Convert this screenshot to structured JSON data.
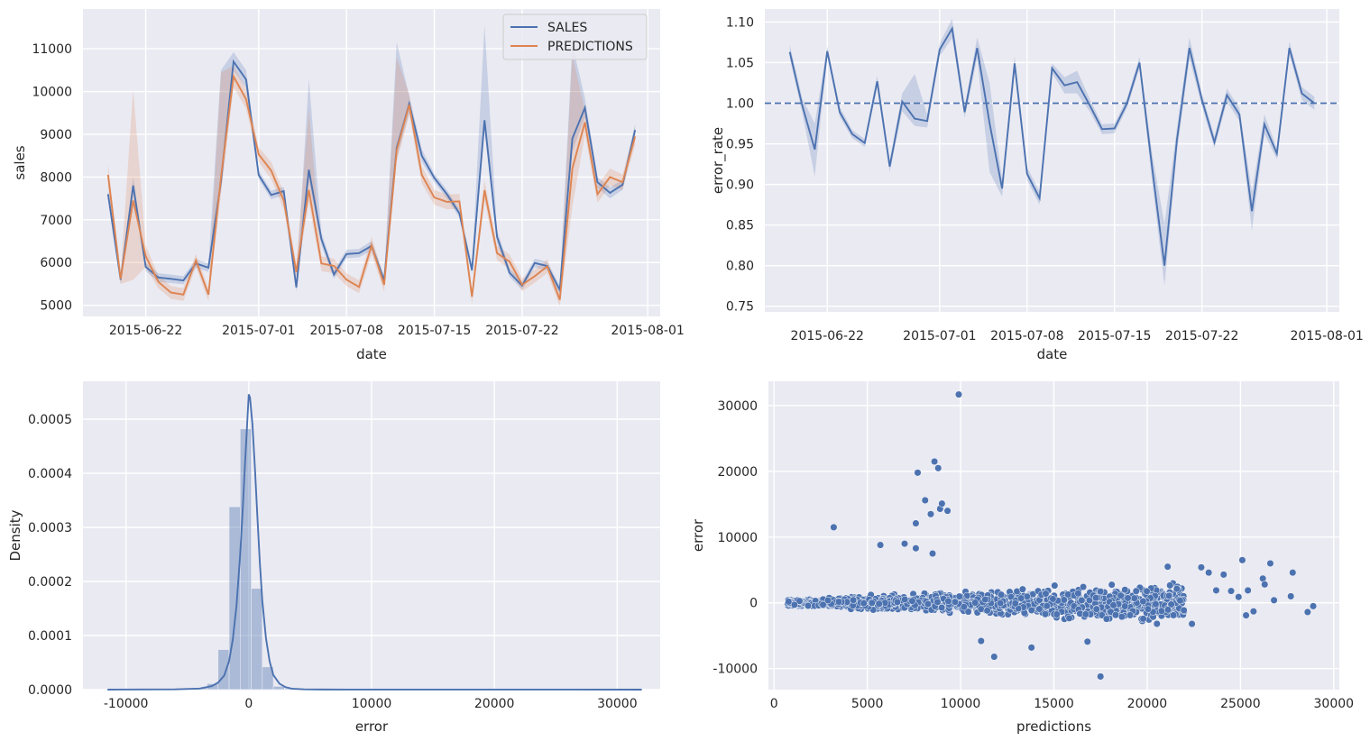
{
  "chart_data": [
    {
      "type": "line",
      "panel": "top-left",
      "xlabel": "date",
      "ylabel": "sales",
      "x": [
        "2015-06-19",
        "2015-06-20",
        "2015-06-21",
        "2015-06-22",
        "2015-06-23",
        "2015-06-24",
        "2015-06-25",
        "2015-06-26",
        "2015-06-27",
        "2015-06-28",
        "2015-06-29",
        "2015-06-30",
        "2015-07-01",
        "2015-07-02",
        "2015-07-03",
        "2015-07-04",
        "2015-07-05",
        "2015-07-06",
        "2015-07-07",
        "2015-07-08",
        "2015-07-09",
        "2015-07-10",
        "2015-07-11",
        "2015-07-12",
        "2015-07-13",
        "2015-07-14",
        "2015-07-15",
        "2015-07-16",
        "2015-07-17",
        "2015-07-18",
        "2015-07-19",
        "2015-07-20",
        "2015-07-21",
        "2015-07-22",
        "2015-07-23",
        "2015-07-24",
        "2015-07-25",
        "2015-07-26",
        "2015-07-27",
        "2015-07-28",
        "2015-07-29",
        "2015-07-30",
        "2015-07-31"
      ],
      "xticks": [
        "2015-06-22",
        "2015-07-01",
        "2015-07-08",
        "2015-07-15",
        "2015-07-22",
        "2015-08-01"
      ],
      "xlim": [
        "2015-06-17",
        "2015-08-02"
      ],
      "yticks": [
        5000,
        6000,
        7000,
        8000,
        9000,
        10000,
        11000
      ],
      "ylim": [
        4740,
        11930
      ],
      "legend_position": "top-right",
      "series": [
        {
          "name": "SALES",
          "color": "#4c72b0",
          "values": [
            7600,
            5600,
            7800,
            5900,
            5650,
            5620,
            5580,
            5980,
            5880,
            7900,
            10700,
            10280,
            8050,
            7580,
            7670,
            5420,
            8170,
            6550,
            5720,
            6200,
            6220,
            6390,
            5580,
            8680,
            9710,
            8500,
            7980,
            7600,
            7150,
            5820,
            9330,
            6600,
            5760,
            5460,
            5990,
            5920,
            5360,
            8900,
            9620,
            7880,
            7630,
            7820,
            9100
          ],
          "lower": [
            7500,
            5500,
            7600,
            5800,
            5550,
            5520,
            5490,
            5880,
            5780,
            7700,
            10500,
            10080,
            7950,
            7480,
            7570,
            5320,
            7900,
            6400,
            5620,
            6100,
            6120,
            6280,
            5480,
            8450,
            9500,
            8350,
            7880,
            7500,
            7050,
            5720,
            9100,
            6450,
            5660,
            5360,
            5890,
            5820,
            5260,
            8600,
            9400,
            7750,
            7500,
            7700,
            8950
          ],
          "upper": [
            7700,
            5700,
            8000,
            6000,
            5750,
            5720,
            5680,
            6080,
            5980,
            10500,
            10920,
            10500,
            8150,
            7680,
            7770,
            5520,
            10300,
            6700,
            5820,
            6300,
            6320,
            6500,
            5680,
            11150,
            9900,
            8650,
            8080,
            7700,
            7250,
            5920,
            11550,
            6750,
            5860,
            5560,
            6090,
            6020,
            5460,
            11100,
            9850,
            8000,
            7760,
            7940,
            9250
          ]
        },
        {
          "name": "PREDICTIONS",
          "color": "#dd8452",
          "values": [
            8050,
            5620,
            7450,
            6150,
            5550,
            5300,
            5250,
            6050,
            5250,
            8000,
            10350,
            9820,
            8530,
            8150,
            7450,
            5780,
            7700,
            5980,
            5920,
            5600,
            5430,
            6400,
            5480,
            8630,
            9690,
            8050,
            7520,
            7420,
            7430,
            5200,
            7690,
            6220,
            6020,
            5480,
            5680,
            5910,
            5130,
            8200,
            9280,
            7600,
            8000,
            7880,
            8950
          ],
          "lower": [
            7800,
            5500,
            5600,
            5900,
            5400,
            5150,
            5100,
            5900,
            5100,
            7600,
            10100,
            9600,
            8350,
            7950,
            7250,
            5600,
            7400,
            5800,
            5750,
            5450,
            5280,
            6200,
            5320,
            8350,
            9450,
            7850,
            7350,
            7250,
            7250,
            5050,
            7450,
            6050,
            5850,
            5330,
            5530,
            5750,
            4980,
            7300,
            9000,
            7400,
            7800,
            7700,
            8750
          ],
          "upper": [
            8300,
            5740,
            10050,
            6400,
            5700,
            5450,
            5400,
            6200,
            5400,
            10450,
            10600,
            10050,
            8700,
            8350,
            7650,
            5960,
            9600,
            6150,
            6090,
            5750,
            5580,
            6600,
            5640,
            10800,
            9930,
            8250,
            7700,
            7590,
            7610,
            5350,
            7930,
            6390,
            6190,
            5630,
            5830,
            6070,
            5280,
            10850,
            9560,
            7800,
            8200,
            8060,
            9150
          ]
        }
      ]
    },
    {
      "type": "line",
      "panel": "top-right",
      "xlabel": "date",
      "ylabel": "error_rate",
      "x_ref": "same dates as top-left",
      "xticks": [
        "2015-06-22",
        "2015-07-01",
        "2015-07-08",
        "2015-07-15",
        "2015-07-22",
        "2015-08-01"
      ],
      "yticks": [
        "0.75",
        "0.80",
        "0.85",
        "0.90",
        "0.95",
        "1.00",
        "1.05",
        "1.10"
      ],
      "ylim": [
        0.743,
        1.116
      ],
      "reference_line": 1.0,
      "series": [
        {
          "name": "error_rate",
          "color": "#4c72b0",
          "values": [
            1.063,
            0.997,
            0.943,
            1.064,
            0.989,
            0.962,
            0.951,
            1.027,
            0.922,
            1.002,
            0.981,
            0.978,
            1.066,
            1.092,
            0.989,
            1.068,
            0.975,
            0.895,
            1.049,
            0.913,
            0.883,
            1.043,
            1.022,
            1.026,
            0.998,
            0.968,
            0.969,
            1.0,
            1.05,
            0.922,
            0.8,
            0.955,
            1.068,
            1.004,
            0.952,
            1.01,
            0.986,
            0.867,
            0.974,
            0.938,
            1.068,
            1.012,
            1.0
          ],
          "lower": [
            1.055,
            0.988,
            0.91,
            1.058,
            0.983,
            0.957,
            0.946,
            1.02,
            0.915,
            0.99,
            0.972,
            0.97,
            1.058,
            1.08,
            0.982,
            1.055,
            0.915,
            0.885,
            1.04,
            0.905,
            0.875,
            1.037,
            1.012,
            1.012,
            0.99,
            0.962,
            0.963,
            0.994,
            1.043,
            0.905,
            0.775,
            0.94,
            1.055,
            0.996,
            0.945,
            1.002,
            0.978,
            0.843,
            0.962,
            0.931,
            1.06,
            1.004,
            0.992
          ],
          "upper": [
            1.072,
            1.006,
            0.975,
            1.07,
            0.995,
            0.967,
            0.956,
            1.034,
            0.929,
            1.012,
            1.036,
            0.986,
            1.074,
            1.104,
            0.996,
            1.081,
            1.025,
            0.905,
            1.058,
            0.921,
            0.891,
            1.049,
            1.032,
            1.04,
            1.006,
            0.974,
            0.975,
            1.006,
            1.057,
            0.939,
            0.851,
            0.97,
            1.081,
            1.012,
            0.959,
            1.018,
            0.994,
            0.891,
            0.986,
            0.945,
            1.076,
            1.02,
            1.008
          ]
        }
      ]
    },
    {
      "type": "histogram",
      "panel": "bottom-left",
      "xlabel": "error",
      "ylabel": "Density",
      "xlim": [
        -13500,
        33500
      ],
      "xticks": [
        -10000,
        0,
        10000,
        20000,
        30000
      ],
      "ylim": [
        0,
        0.00057
      ],
      "yticks": [
        "0.0000",
        "0.0001",
        "0.0002",
        "0.0003",
        "0.0004",
        "0.0005"
      ],
      "bin_edges": [
        -11500,
        -10600,
        -9700,
        -8800,
        -7900,
        -7000,
        -6100,
        -5200,
        -4300,
        -3400,
        -2500,
        -1600,
        -700,
        200,
        1100,
        2000,
        2900,
        3800,
        4700,
        5600,
        6500,
        7400,
        8300,
        9200,
        10100,
        11000,
        11900,
        12800,
        13700,
        14600,
        15500,
        16400,
        17300,
        18200,
        19100,
        20000,
        20900,
        21800,
        22700,
        23600,
        24500,
        25400,
        26300,
        27200,
        28100,
        29000,
        29900,
        30800,
        31700
      ],
      "bar_density": [
        1e-07,
        0,
        0,
        0,
        0,
        0,
        4e-07,
        1.2e-06,
        3.5e-06,
        1.1e-05,
        7.4e-05,
        0.000338,
        0.000482,
        0.000187,
        4.2e-05,
        6e-06,
        1.8e-06,
        7e-07,
        3e-07,
        1e-07,
        0,
        0,
        1e-07,
        0,
        0,
        0,
        0,
        0,
        0,
        0,
        0,
        0,
        0,
        0,
        0,
        0,
        0,
        0,
        0,
        0,
        0,
        0,
        0,
        0,
        0,
        0,
        0,
        0
      ],
      "kde": {
        "x": [
          -11500,
          -6000,
          -4000,
          -3000,
          -2500,
          -2000,
          -1600,
          -1300,
          -1000,
          -700,
          -500,
          -300,
          -100,
          0,
          100,
          300,
          500,
          700,
          900,
          1100,
          1400,
          1700,
          2000,
          2500,
          3000,
          3500,
          4500,
          6000,
          10000,
          20000,
          32000
        ],
        "y": [
          0,
          5e-07,
          2e-06,
          6.5e-06,
          1.3e-05,
          2.6e-05,
          5.3e-05,
          9.3e-05,
          0.000155,
          0.00025,
          0.00033,
          0.00042,
          0.000505,
          0.000546,
          0.00054,
          0.00049,
          0.00041,
          0.00032,
          0.000235,
          0.000165,
          9.5e-05,
          5.2e-05,
          2.7e-05,
          1.1e-05,
          4.5e-06,
          1.8e-06,
          6e-07,
          2e-07,
          1e-07,
          1e-07,
          0
        ]
      }
    },
    {
      "type": "scatter",
      "panel": "bottom-right",
      "xlabel": "predictions",
      "ylabel": "error",
      "xlim": [
        -300,
        30300
      ],
      "xticks": [
        0,
        5000,
        10000,
        15000,
        20000,
        25000,
        30000
      ],
      "ylim": [
        -13200,
        33700
      ],
      "yticks": [
        -10000,
        0,
        10000,
        20000,
        30000
      ],
      "color": "#4c72b0",
      "cloud": {
        "x_range": [
          700,
          22000
        ],
        "spread_note": "dense cloud around 0, widening with predictions"
      },
      "notable_points": [
        {
          "x": 3200,
          "y": 11500
        },
        {
          "x": 5700,
          "y": 8800
        },
        {
          "x": 7000,
          "y": 9000
        },
        {
          "x": 7600,
          "y": 8300
        },
        {
          "x": 7600,
          "y": 12100
        },
        {
          "x": 7700,
          "y": 19800
        },
        {
          "x": 8100,
          "y": 15600
        },
        {
          "x": 8400,
          "y": 13500
        },
        {
          "x": 8600,
          "y": 21500
        },
        {
          "x": 8800,
          "y": 20500
        },
        {
          "x": 8900,
          "y": 14300
        },
        {
          "x": 9000,
          "y": 15100
        },
        {
          "x": 9300,
          "y": 14000
        },
        {
          "x": 9900,
          "y": 31700
        },
        {
          "x": 8500,
          "y": 7500
        },
        {
          "x": 11100,
          "y": -5800
        },
        {
          "x": 11800,
          "y": -8200
        },
        {
          "x": 13800,
          "y": -6800
        },
        {
          "x": 16800,
          "y": -5900
        },
        {
          "x": 17500,
          "y": -11200
        },
        {
          "x": 21100,
          "y": 5500
        },
        {
          "x": 22400,
          "y": -3200
        },
        {
          "x": 22900,
          "y": 5400
        },
        {
          "x": 23300,
          "y": 4600
        },
        {
          "x": 23700,
          "y": 1900
        },
        {
          "x": 24100,
          "y": 4300
        },
        {
          "x": 24500,
          "y": 1800
        },
        {
          "x": 24900,
          "y": 900
        },
        {
          "x": 25100,
          "y": 6500
        },
        {
          "x": 25400,
          "y": 1900
        },
        {
          "x": 25300,
          "y": -1900
        },
        {
          "x": 25700,
          "y": -1300
        },
        {
          "x": 26200,
          "y": 3700
        },
        {
          "x": 26300,
          "y": 2800
        },
        {
          "x": 26600,
          "y": 6000
        },
        {
          "x": 26800,
          "y": 400
        },
        {
          "x": 27800,
          "y": 4600
        },
        {
          "x": 27700,
          "y": 1000
        },
        {
          "x": 28600,
          "y": -1400
        },
        {
          "x": 28900,
          "y": -500
        }
      ]
    }
  ]
}
